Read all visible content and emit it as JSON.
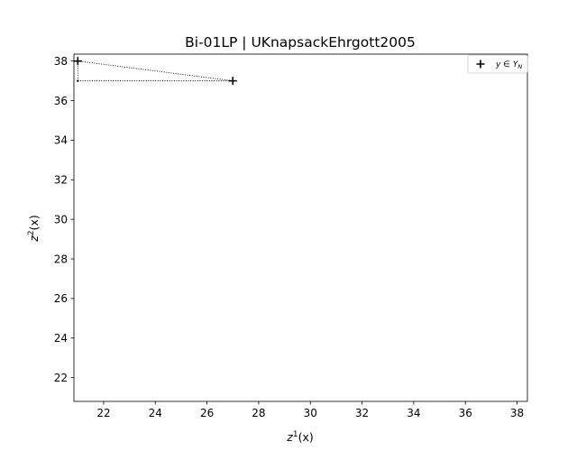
{
  "chart_data": {
    "type": "scatter",
    "title": "Bi-01LP | UKnapsackEhrgott2005",
    "xlabel": "z",
    "xlabel_sup": "1",
    "xlabel_suffix": "(x)",
    "ylabel": "z",
    "ylabel_sup": "2",
    "ylabel_suffix": "(x)",
    "xlim": [
      20.85,
      38.4
    ],
    "ylim": [
      20.8,
      38.35
    ],
    "xticks": [
      22,
      24,
      26,
      28,
      30,
      32,
      34,
      36,
      38
    ],
    "yticks": [
      22,
      24,
      26,
      28,
      30,
      32,
      34,
      36,
      38
    ],
    "grid": false,
    "legend_position": "top-right",
    "series": [
      {
        "name": "y ∈ Y",
        "name_sub": "N",
        "marker": "plus",
        "color": "#000000",
        "points": [
          {
            "x": 21,
            "y": 38
          },
          {
            "x": 27,
            "y": 37
          }
        ]
      }
    ],
    "connector_lines": [
      {
        "x": [
          21,
          27
        ],
        "y": [
          38,
          37
        ]
      },
      {
        "x": [
          21,
          21
        ],
        "y": [
          38,
          37
        ]
      },
      {
        "x": [
          21,
          27
        ],
        "y": [
          37,
          37
        ]
      }
    ],
    "auxiliary_points": [
      {
        "x": 21,
        "y": 37
      }
    ]
  }
}
